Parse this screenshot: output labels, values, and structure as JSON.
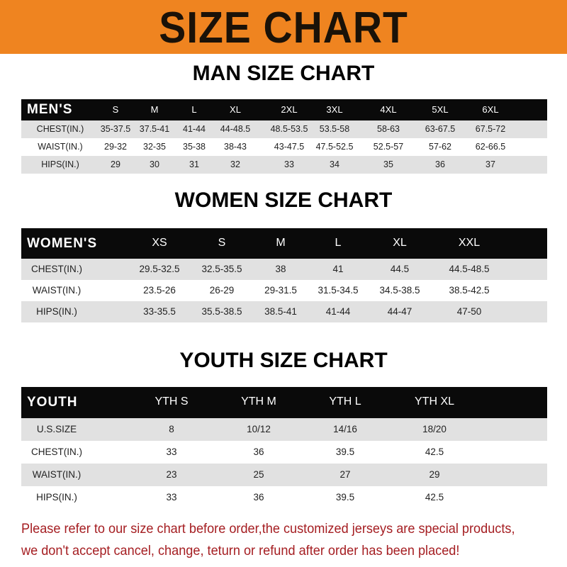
{
  "banner": {
    "title": "SIZE CHART",
    "color": "#ef8420"
  },
  "men": {
    "title": "MAN SIZE CHART",
    "header": "MEN'S",
    "sizes": [
      "S",
      "M",
      "L",
      "XL",
      "2XL",
      "3XL",
      "4XL",
      "5XL",
      "6XL"
    ],
    "rows": [
      {
        "label": "CHEST(IN.)",
        "values": [
          "35-37.5",
          "37.5-41",
          "41-44",
          "44-48.5",
          "48.5-53.5",
          "53.5-58",
          "58-63",
          "63-67.5",
          "67.5-72"
        ]
      },
      {
        "label": "WAIST(IN.)",
        "values": [
          "29-32",
          "32-35",
          "35-38",
          "38-43",
          "43-47.5",
          "47.5-52.5",
          "52.5-57",
          "57-62",
          "62-66.5"
        ]
      },
      {
        "label": "HIPS(IN.)",
        "values": [
          "29",
          "30",
          "31",
          "32",
          "33",
          "34",
          "35",
          "36",
          "37"
        ]
      }
    ]
  },
  "women": {
    "title": "WOMEN SIZE CHART",
    "header": "WOMEN'S",
    "sizes": [
      "XS",
      "S",
      "M",
      "L",
      "XL",
      "XXL"
    ],
    "rows": [
      {
        "label": "CHEST(IN.)",
        "values": [
          "29.5-32.5",
          "32.5-35.5",
          "38",
          "41",
          "44.5",
          "44.5-48.5"
        ]
      },
      {
        "label": "WAIST(IN.)",
        "values": [
          "23.5-26",
          "26-29",
          "29-31.5",
          "31.5-34.5",
          "34.5-38.5",
          "38.5-42.5"
        ]
      },
      {
        "label": "HIPS(IN.)",
        "values": [
          "33-35.5",
          "35.5-38.5",
          "38.5-41",
          "41-44",
          "44-47",
          "47-50"
        ]
      }
    ]
  },
  "youth": {
    "title": "YOUTH SIZE CHART",
    "header": "YOUTH",
    "sizes": [
      "YTH S",
      "YTH M",
      "YTH L",
      "YTH XL"
    ],
    "rows": [
      {
        "label": "U.S.SIZE",
        "values": [
          "8",
          "10/12",
          "14/16",
          "18/20"
        ]
      },
      {
        "label": "CHEST(IN.)",
        "values": [
          "33",
          "36",
          "39.5",
          "42.5"
        ]
      },
      {
        "label": "WAIST(IN.)",
        "values": [
          "23",
          "25",
          "27",
          "29"
        ]
      },
      {
        "label": "HIPS(IN.)",
        "values": [
          "33",
          "36",
          "39.5",
          "42.5"
        ]
      }
    ]
  },
  "notice": {
    "line1": "Please refer to our size chart before order,the customized jerseys are special products,",
    "line2": "we don't accept cancel, change, teturn or refund after order has been placed!",
    "color": "#a51e22"
  }
}
